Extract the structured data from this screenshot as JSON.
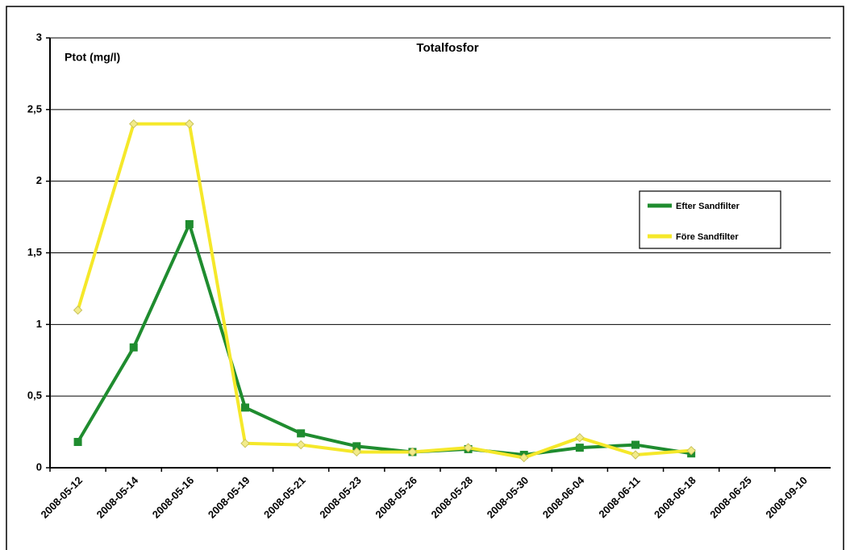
{
  "chart_data": {
    "type": "line",
    "title": "Totalfosfor",
    "y_label": "Ptot  (mg/l)",
    "categories": [
      "2008-05-12",
      "2008-05-14",
      "2008-05-16",
      "2008-05-19",
      "2008-05-21",
      "2008-05-23",
      "2008-05-26",
      "2008-05-28",
      "2008-05-30",
      "2008-06-04",
      "2008-06-11",
      "2008-06-18",
      "2008-06-25",
      "2008-09-10"
    ],
    "series": [
      {
        "name": "Efter Sandfilter",
        "color": "#1f8c2f",
        "marker": "square",
        "values": [
          0.18,
          0.84,
          1.7,
          0.42,
          0.24,
          0.15,
          0.11,
          0.13,
          0.09,
          0.14,
          0.16,
          0.1,
          null,
          null
        ]
      },
      {
        "name": "Före Sandfilter",
        "color": "#f5e82a",
        "marker": "diamond",
        "values": [
          1.1,
          2.4,
          2.4,
          0.17,
          0.16,
          0.11,
          0.11,
          0.14,
          0.07,
          0.21,
          0.09,
          0.12,
          null,
          null
        ]
      }
    ],
    "ylim": [
      0,
      3
    ],
    "yticks": [
      0,
      {
        "value": 0.5,
        "label": "0,5"
      },
      1,
      {
        "value": 1.5,
        "label": "1,5"
      },
      2,
      {
        "value": 2.5,
        "label": "2,5"
      },
      3
    ],
    "grid": true,
    "legend": "right"
  }
}
